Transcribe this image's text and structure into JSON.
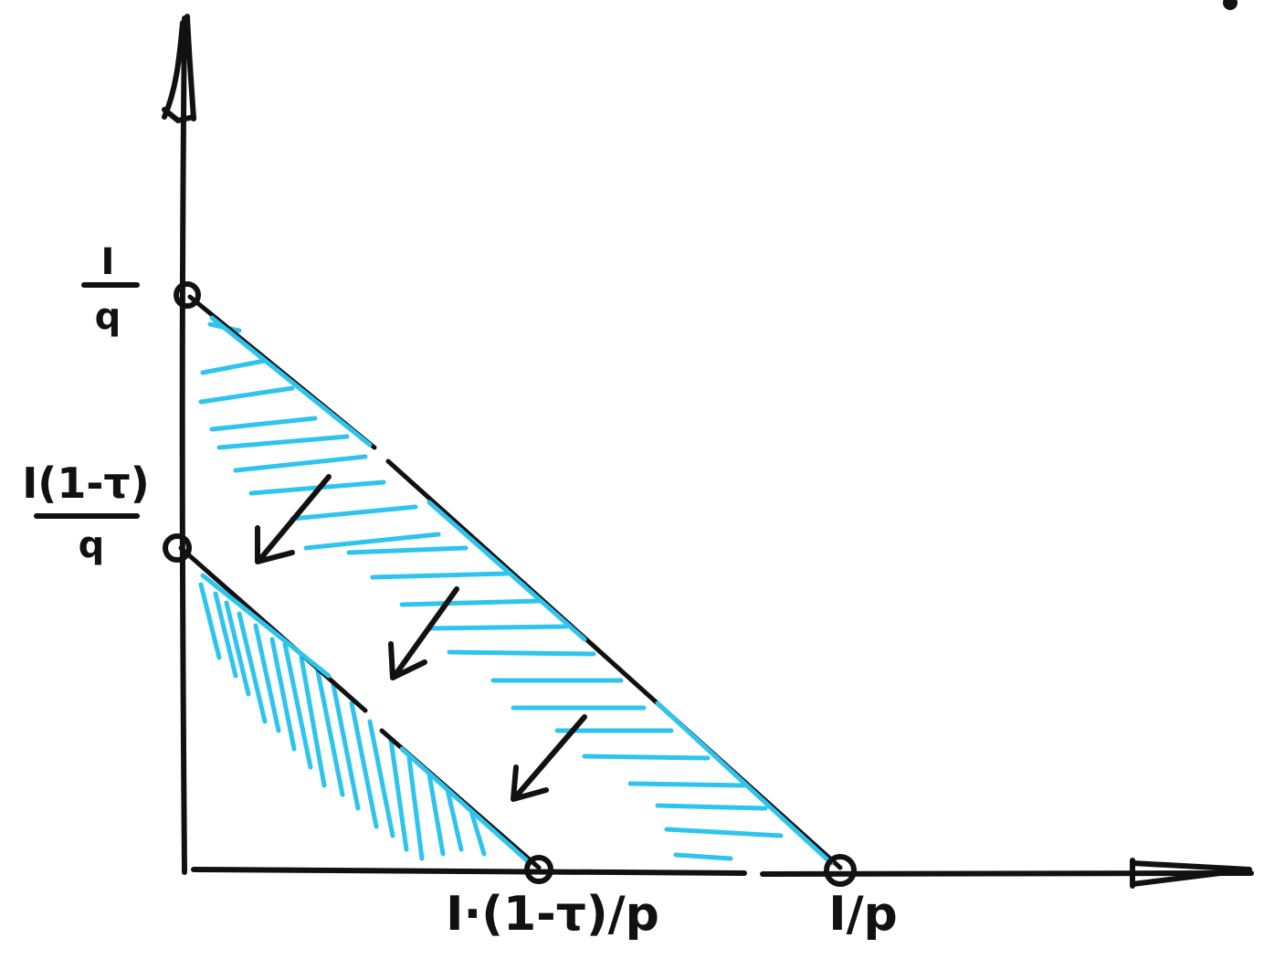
{
  "labels": {
    "y_top_numerator": "I",
    "y_top_denominator": "q",
    "y_mid_numerator": "I(1-τ)",
    "y_mid_denominator": "q",
    "x_mid": "I·(1-τ)/p",
    "x_right": "I/p"
  },
  "colors": {
    "ink": "#111111",
    "hatch": "#2ec4ee"
  },
  "icons": {
    "shift_arrows": "arrow-down-left-icon"
  }
}
